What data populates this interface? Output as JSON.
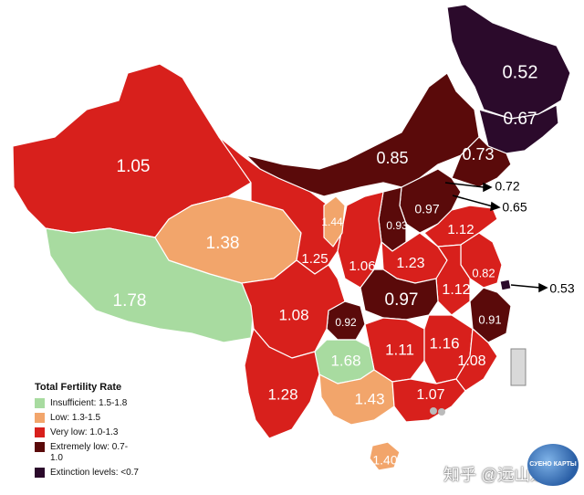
{
  "legend": {
    "title": "Total Fertility Rate",
    "items": [
      {
        "label": "Insufficient: 1.5-1.8",
        "color": "#a8dba0"
      },
      {
        "label": "Low: 1.3-1.5",
        "color": "#f2a56b"
      },
      {
        "label": "Very low: 1.0-1.3",
        "color": "#d8201c"
      },
      {
        "label": "Extremely low: 0.7-1.0",
        "color": "#5a0a0a"
      },
      {
        "label": "Extinction levels: <0.7",
        "color": "#2b0a2b"
      }
    ]
  },
  "regions": {
    "heilongjiang": "0.52",
    "jilin": "0.67",
    "liaoning": "0.73",
    "inner_mongolia": "0.85",
    "beijing": "0.72",
    "tianjin": "0.65",
    "hebei": "0.97",
    "shanxi": "0.93",
    "shandong": "1.12",
    "shanghai": "0.53",
    "jiangsu": "0.82",
    "zhejiang": "0.91",
    "anhui": "1.12",
    "henan": "1.23",
    "shaanxi": "1.06",
    "ningxia": "1.44",
    "gansu": "1.25",
    "xinjiang": "1.05",
    "qinghai": "1.38",
    "tibet": "1.78",
    "sichuan": "1.08",
    "chongqing": "0.92",
    "hubei": "0.97",
    "hunan": "1.11",
    "jiangxi": "1.16",
    "fujian": "1.08",
    "guizhou": "1.68",
    "guangxi": "1.43",
    "guangdong": "1.07",
    "yunnan": "1.28",
    "hainan": "1.40"
  },
  "watermark": "知乎 @远山近水",
  "logo_text": "СУЕНО КАРТЫ"
}
